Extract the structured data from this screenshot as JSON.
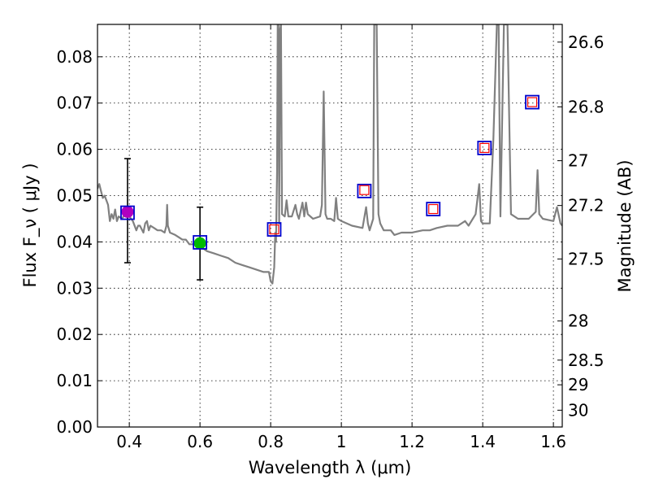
{
  "chart_data": {
    "type": "scatter",
    "xlabel": "Wavelength  λ (μm)",
    "ylabel": "Flux  F_ν  ( μJy )",
    "ylabel_right": "Magnitude (AB)",
    "xlim": [
      0.31,
      1.625
    ],
    "ylim": [
      0.0,
      0.087
    ],
    "grid": true,
    "x_ticks": [
      0.4,
      0.6,
      0.8,
      1.0,
      1.2,
      1.4,
      1.6
    ],
    "x_tick_labels": [
      "0.4",
      "0.6",
      "0.8",
      "1",
      "1.2",
      "1.4",
      "1.6"
    ],
    "y_ticks": [
      0.0,
      0.01,
      0.02,
      0.03,
      0.04,
      0.05,
      0.06,
      0.07,
      0.08
    ],
    "y_tick_labels": [
      "0.00",
      "0.01",
      "0.02",
      "0.03",
      "0.04",
      "0.05",
      "0.06",
      "0.07",
      "0.08"
    ],
    "right_ticks": [
      {
        "label": "26.6",
        "mag": 26.6
      },
      {
        "label": "26.8",
        "mag": 26.8
      },
      {
        "label": "27",
        "mag": 27.0
      },
      {
        "label": "27.2",
        "mag": 27.2
      },
      {
        "label": "27.5",
        "mag": 27.5
      },
      {
        "label": "28",
        "mag": 28.0
      },
      {
        "label": "28.5",
        "mag": 28.5
      },
      {
        "label": "29",
        "mag": 29.0
      },
      {
        "label": "30",
        "mag": 30.0
      }
    ],
    "model_spectrum": {
      "color": "#808080",
      "points": [
        [
          0.31,
          0.0515
        ],
        [
          0.315,
          0.0525
        ],
        [
          0.32,
          0.051
        ],
        [
          0.325,
          0.0495
        ],
        [
          0.33,
          0.05
        ],
        [
          0.335,
          0.049
        ],
        [
          0.34,
          0.048
        ],
        [
          0.345,
          0.0445
        ],
        [
          0.35,
          0.046
        ],
        [
          0.355,
          0.045
        ],
        [
          0.36,
          0.047
        ],
        [
          0.365,
          0.0445
        ],
        [
          0.37,
          0.0455
        ],
        [
          0.38,
          0.045
        ],
        [
          0.39,
          0.0465
        ],
        [
          0.4,
          0.0455
        ],
        [
          0.41,
          0.0445
        ],
        [
          0.42,
          0.0425
        ],
        [
          0.425,
          0.0435
        ],
        [
          0.43,
          0.0435
        ],
        [
          0.44,
          0.042
        ],
        [
          0.445,
          0.044
        ],
        [
          0.45,
          0.0445
        ],
        [
          0.455,
          0.0425
        ],
        [
          0.46,
          0.0435
        ],
        [
          0.47,
          0.043
        ],
        [
          0.48,
          0.0425
        ],
        [
          0.49,
          0.0425
        ],
        [
          0.5,
          0.042
        ],
        [
          0.505,
          0.0435
        ],
        [
          0.507,
          0.048
        ],
        [
          0.509,
          0.0435
        ],
        [
          0.515,
          0.042
        ],
        [
          0.53,
          0.0415
        ],
        [
          0.54,
          0.041
        ],
        [
          0.55,
          0.0405
        ],
        [
          0.56,
          0.0405
        ],
        [
          0.57,
          0.0395
        ],
        [
          0.58,
          0.0395
        ],
        [
          0.59,
          0.0395
        ],
        [
          0.6,
          0.039
        ],
        [
          0.61,
          0.0385
        ],
        [
          0.62,
          0.038
        ],
        [
          0.64,
          0.0375
        ],
        [
          0.66,
          0.037
        ],
        [
          0.68,
          0.0365
        ],
        [
          0.7,
          0.0355
        ],
        [
          0.72,
          0.035
        ],
        [
          0.74,
          0.0345
        ],
        [
          0.76,
          0.034
        ],
        [
          0.78,
          0.0335
        ],
        [
          0.795,
          0.0335
        ],
        [
          0.8,
          0.0315
        ],
        [
          0.805,
          0.031
        ],
        [
          0.81,
          0.0345
        ],
        [
          0.813,
          0.042
        ],
        [
          0.815,
          0.04
        ],
        [
          0.818,
          0.055
        ],
        [
          0.82,
          0.087
        ],
        [
          0.822,
          0.087
        ],
        [
          0.824,
          0.044
        ],
        [
          0.827,
          0.086
        ],
        [
          0.829,
          0.087
        ],
        [
          0.832,
          0.046
        ],
        [
          0.84,
          0.0455
        ],
        [
          0.845,
          0.049
        ],
        [
          0.85,
          0.0455
        ],
        [
          0.86,
          0.0455
        ],
        [
          0.87,
          0.048
        ],
        [
          0.875,
          0.046
        ],
        [
          0.88,
          0.045
        ],
        [
          0.89,
          0.0485
        ],
        [
          0.895,
          0.0455
        ],
        [
          0.9,
          0.0485
        ],
        [
          0.905,
          0.046
        ],
        [
          0.92,
          0.045
        ],
        [
          0.94,
          0.0455
        ],
        [
          0.945,
          0.048
        ],
        [
          0.95,
          0.0725
        ],
        [
          0.955,
          0.046
        ],
        [
          0.96,
          0.045
        ],
        [
          0.97,
          0.045
        ],
        [
          0.98,
          0.0445
        ],
        [
          0.985,
          0.0495
        ],
        [
          0.99,
          0.045
        ],
        [
          1.0,
          0.0445
        ],
        [
          1.03,
          0.0435
        ],
        [
          1.06,
          0.043
        ],
        [
          1.07,
          0.0475
        ],
        [
          1.075,
          0.044
        ],
        [
          1.08,
          0.0425
        ],
        [
          1.09,
          0.045
        ],
        [
          1.093,
          0.087
        ],
        [
          1.1,
          0.087
        ],
        [
          1.105,
          0.046
        ],
        [
          1.11,
          0.044
        ],
        [
          1.12,
          0.0425
        ],
        [
          1.14,
          0.0425
        ],
        [
          1.15,
          0.0415
        ],
        [
          1.17,
          0.042
        ],
        [
          1.2,
          0.042
        ],
        [
          1.23,
          0.0425
        ],
        [
          1.25,
          0.0425
        ],
        [
          1.27,
          0.043
        ],
        [
          1.3,
          0.0435
        ],
        [
          1.33,
          0.0435
        ],
        [
          1.35,
          0.0445
        ],
        [
          1.36,
          0.0435
        ],
        [
          1.38,
          0.046
        ],
        [
          1.39,
          0.0525
        ],
        [
          1.395,
          0.0445
        ],
        [
          1.4,
          0.044
        ],
        [
          1.42,
          0.044
        ],
        [
          1.43,
          0.062
        ],
        [
          1.44,
          0.087
        ],
        [
          1.445,
          0.087
        ],
        [
          1.45,
          0.0455
        ],
        [
          1.46,
          0.087
        ],
        [
          1.47,
          0.087
        ],
        [
          1.48,
          0.046
        ],
        [
          1.5,
          0.045
        ],
        [
          1.53,
          0.045
        ],
        [
          1.55,
          0.0465
        ],
        [
          1.555,
          0.0555
        ],
        [
          1.56,
          0.046
        ],
        [
          1.57,
          0.045
        ],
        [
          1.6,
          0.0445
        ],
        [
          1.61,
          0.0475
        ],
        [
          1.62,
          0.044
        ],
        [
          1.625,
          0.0435
        ]
      ]
    },
    "observed_points": [
      {
        "name": "obs-1",
        "x": 0.395,
        "y": 0.0465,
        "color": "#b000c0",
        "err_low": 0.0355,
        "err_high": 0.058
      },
      {
        "name": "obs-2",
        "x": 0.6,
        "y": 0.0397,
        "color": "#00bb00",
        "err_low": 0.0318,
        "err_high": 0.0475
      }
    ],
    "model_synthetic_photometry": {
      "color": "#0000cc",
      "points": [
        [
          0.395,
          0.0463
        ],
        [
          0.6,
          0.0399
        ],
        [
          0.81,
          0.0427
        ],
        [
          1.065,
          0.051
        ],
        [
          1.26,
          0.0471
        ],
        [
          1.405,
          0.0603
        ],
        [
          1.54,
          0.0702
        ]
      ]
    },
    "upper_limits": {
      "color": "#ff0000",
      "points": [
        [
          0.81,
          0.0427
        ],
        [
          1.065,
          0.0512
        ],
        [
          1.26,
          0.0471
        ],
        [
          1.405,
          0.0603
        ],
        [
          1.54,
          0.0702
        ]
      ]
    }
  }
}
